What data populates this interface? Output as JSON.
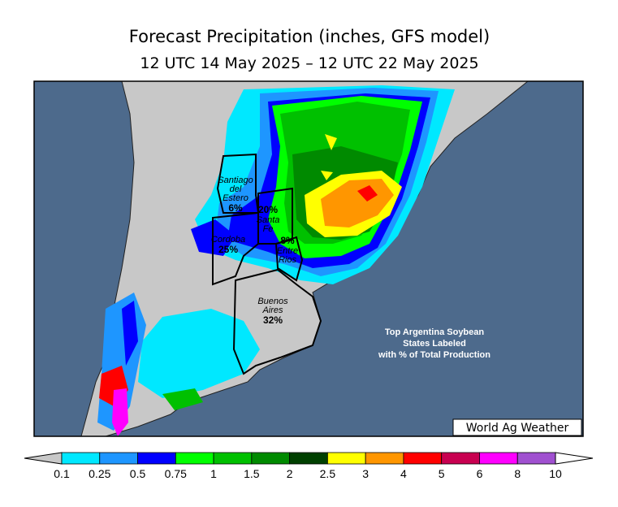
{
  "title": "Forecast Precipitation (inches, GFS model)",
  "subtitle": "12 UTC 14 May 2025 – 12 UTC 22 May 2025",
  "regions": [
    {
      "name_lines": [
        "Santiago",
        "del",
        "Estero"
      ],
      "share": "6%"
    },
    {
      "name_lines": [
        "Santa",
        "Fe"
      ],
      "share": "20%"
    },
    {
      "name_lines": [
        "Cordoba"
      ],
      "share": "25%"
    },
    {
      "name_lines": [
        "Entre",
        "Rios"
      ],
      "share": "8%"
    },
    {
      "name_lines": [
        "Buenos",
        "Aires"
      ],
      "share": "32%"
    }
  ],
  "note": [
    "Top Argentina Soybean",
    "States Labeled",
    "with % of Total Production"
  ],
  "credit": "World Ag Weather",
  "legend": {
    "ticks": [
      0.1,
      0.25,
      0.5,
      0.75,
      1,
      1.5,
      2,
      2.5,
      3,
      4,
      5,
      6,
      8,
      10
    ],
    "below_color": "#c8c8c8",
    "above_color": "#ffffff",
    "colors": [
      "#00e8ff",
      "#1e96ff",
      "#0000ff",
      "#00ff00",
      "#00c000",
      "#008a00",
      "#004000",
      "#ffff00",
      "#ff9600",
      "#ff0000",
      "#c80050",
      "#ff00ff",
      "#a050d0"
    ]
  }
}
